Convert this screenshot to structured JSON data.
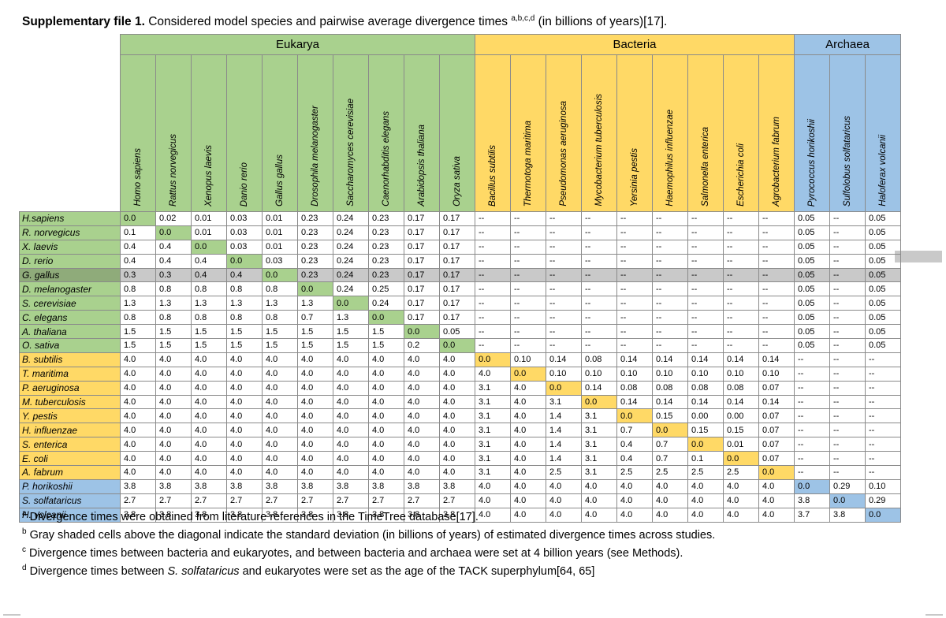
{
  "caption": {
    "bold": "Supplementary file 1.",
    "text": " Considered model species and pairwise average divergence times ",
    "sup": "a,b,c,d",
    "tail": " (in billions of years)[17]."
  },
  "groups": [
    {
      "label": "Eukarya",
      "span": 10,
      "cls": "g"
    },
    {
      "label": "Bacteria",
      "span": 9,
      "cls": "y"
    },
    {
      "label": "Archaea",
      "span": 3,
      "cls": "b"
    }
  ],
  "columns": [
    "Homo sapiens",
    "Rattus norvegicus",
    "Xenopus laevis",
    "Danio rerio",
    "Gallus gallus",
    "Drosophila melanogaster",
    "Saccharomyces cerevisiae",
    "Caenorhabditis elegans",
    "Arabidopsis thaliana",
    "Oryza sativa",
    "Bacillus subtilis",
    "Thermotoga maritima",
    "Pseudomonas aeruginosa",
    "Mycobacterium tuberculosis",
    "Yersinia pestis",
    "Haemophilus influenzae",
    "Salmonella enterica",
    "Escherichia coli",
    "Agrobacterium fabrum",
    "Pyrococcus horikoshii",
    "Sulfolobus solfataricus",
    "Haloferax volcanii"
  ],
  "column_groups": [
    "g",
    "g",
    "g",
    "g",
    "g",
    "g",
    "g",
    "g",
    "g",
    "g",
    "y",
    "y",
    "y",
    "y",
    "y",
    "y",
    "y",
    "y",
    "y",
    "b",
    "b",
    "b"
  ],
  "rows": [
    {
      "name": "H.sapiens",
      "cls": "g",
      "values": [
        "0.0",
        "0.02",
        "0.01",
        "0.03",
        "0.01",
        "0.23",
        "0.24",
        "0.23",
        "0.17",
        "0.17",
        "--",
        "--",
        "--",
        "--",
        "--",
        "--",
        "--",
        "--",
        "--",
        "0.05",
        "--",
        "0.05"
      ]
    },
    {
      "name": "R. norvegicus",
      "cls": "g",
      "values": [
        "0.1",
        "0.0",
        "0.01",
        "0.03",
        "0.01",
        "0.23",
        "0.24",
        "0.23",
        "0.17",
        "0.17",
        "--",
        "--",
        "--",
        "--",
        "--",
        "--",
        "--",
        "--",
        "--",
        "0.05",
        "--",
        "0.05"
      ]
    },
    {
      "name": "X. laevis",
      "cls": "g",
      "values": [
        "0.4",
        "0.4",
        "0.0",
        "0.03",
        "0.01",
        "0.23",
        "0.24",
        "0.23",
        "0.17",
        "0.17",
        "--",
        "--",
        "--",
        "--",
        "--",
        "--",
        "--",
        "--",
        "--",
        "0.05",
        "--",
        "0.05"
      ]
    },
    {
      "name": "D. rerio",
      "cls": "g",
      "values": [
        "0.4",
        "0.4",
        "0.4",
        "0.0",
        "0.03",
        "0.23",
        "0.24",
        "0.23",
        "0.17",
        "0.17",
        "--",
        "--",
        "--",
        "--",
        "--",
        "--",
        "--",
        "--",
        "--",
        "0.05",
        "--",
        "0.05"
      ]
    },
    {
      "name": "G. gallus",
      "cls": "g",
      "values": [
        "0.3",
        "0.3",
        "0.4",
        "0.4",
        "0.0",
        "0.23",
        "0.24",
        "0.23",
        "0.17",
        "0.17",
        "--",
        "--",
        "--",
        "--",
        "--",
        "--",
        "--",
        "--",
        "--",
        "0.05",
        "--",
        "0.05"
      ]
    },
    {
      "name": "D. melanogaster",
      "cls": "g",
      "values": [
        "0.8",
        "0.8",
        "0.8",
        "0.8",
        "0.8",
        "0.0",
        "0.24",
        "0.25",
        "0.17",
        "0.17",
        "--",
        "--",
        "--",
        "--",
        "--",
        "--",
        "--",
        "--",
        "--",
        "0.05",
        "--",
        "0.05"
      ]
    },
    {
      "name": "S. cerevisiae",
      "cls": "g",
      "values": [
        "1.3",
        "1.3",
        "1.3",
        "1.3",
        "1.3",
        "1.3",
        "0.0",
        "0.24",
        "0.17",
        "0.17",
        "--",
        "--",
        "--",
        "--",
        "--",
        "--",
        "--",
        "--",
        "--",
        "0.05",
        "--",
        "0.05"
      ]
    },
    {
      "name": "C. elegans",
      "cls": "g",
      "values": [
        "0.8",
        "0.8",
        "0.8",
        "0.8",
        "0.8",
        "0.7",
        "1.3",
        "0.0",
        "0.17",
        "0.17",
        "--",
        "--",
        "--",
        "--",
        "--",
        "--",
        "--",
        "--",
        "--",
        "0.05",
        "--",
        "0.05"
      ]
    },
    {
      "name": "A. thaliana",
      "cls": "g",
      "values": [
        "1.5",
        "1.5",
        "1.5",
        "1.5",
        "1.5",
        "1.5",
        "1.5",
        "1.5",
        "0.0",
        "0.05",
        "--",
        "--",
        "--",
        "--",
        "--",
        "--",
        "--",
        "--",
        "--",
        "0.05",
        "--",
        "0.05"
      ]
    },
    {
      "name": "O. sativa",
      "cls": "g",
      "values": [
        "1.5",
        "1.5",
        "1.5",
        "1.5",
        "1.5",
        "1.5",
        "1.5",
        "1.5",
        "0.2",
        "0.0",
        "--",
        "--",
        "--",
        "--",
        "--",
        "--",
        "--",
        "--",
        "--",
        "0.05",
        "--",
        "0.05"
      ]
    },
    {
      "name": "B. subtilis",
      "cls": "y",
      "values": [
        "4.0",
        "4.0",
        "4.0",
        "4.0",
        "4.0",
        "4.0",
        "4.0",
        "4.0",
        "4.0",
        "4.0",
        "0.0",
        "0.10",
        "0.14",
        "0.08",
        "0.14",
        "0.14",
        "0.14",
        "0.14",
        "0.14",
        "--",
        "--",
        "--"
      ]
    },
    {
      "name": "T. maritima",
      "cls": "y",
      "values": [
        "4.0",
        "4.0",
        "4.0",
        "4.0",
        "4.0",
        "4.0",
        "4.0",
        "4.0",
        "4.0",
        "4.0",
        "4.0",
        "0.0",
        "0.10",
        "0.10",
        "0.10",
        "0.10",
        "0.10",
        "0.10",
        "0.10",
        "--",
        "--",
        "--"
      ]
    },
    {
      "name": "P. aeruginosa",
      "cls": "y",
      "values": [
        "4.0",
        "4.0",
        "4.0",
        "4.0",
        "4.0",
        "4.0",
        "4.0",
        "4.0",
        "4.0",
        "4.0",
        "3.1",
        "4.0",
        "0.0",
        "0.14",
        "0.08",
        "0.08",
        "0.08",
        "0.08",
        "0.07",
        "--",
        "--",
        "--"
      ]
    },
    {
      "name": "M. tuberculosis",
      "cls": "y",
      "values": [
        "4.0",
        "4.0",
        "4.0",
        "4.0",
        "4.0",
        "4.0",
        "4.0",
        "4.0",
        "4.0",
        "4.0",
        "3.1",
        "4.0",
        "3.1",
        "0.0",
        "0.14",
        "0.14",
        "0.14",
        "0.14",
        "0.14",
        "--",
        "--",
        "--"
      ]
    },
    {
      "name": "Y. pestis",
      "cls": "y",
      "values": [
        "4.0",
        "4.0",
        "4.0",
        "4.0",
        "4.0",
        "4.0",
        "4.0",
        "4.0",
        "4.0",
        "4.0",
        "3.1",
        "4.0",
        "1.4",
        "3.1",
        "0.0",
        "0.15",
        "0.00",
        "0.00",
        "0.07",
        "--",
        "--",
        "--"
      ]
    },
    {
      "name": "H. influenzae",
      "cls": "y",
      "values": [
        "4.0",
        "4.0",
        "4.0",
        "4.0",
        "4.0",
        "4.0",
        "4.0",
        "4.0",
        "4.0",
        "4.0",
        "3.1",
        "4.0",
        "1.4",
        "3.1",
        "0.7",
        "0.0",
        "0.15",
        "0.15",
        "0.07",
        "--",
        "--",
        "--"
      ]
    },
    {
      "name": "S. enterica",
      "cls": "y",
      "values": [
        "4.0",
        "4.0",
        "4.0",
        "4.0",
        "4.0",
        "4.0",
        "4.0",
        "4.0",
        "4.0",
        "4.0",
        "3.1",
        "4.0",
        "1.4",
        "3.1",
        "0.4",
        "0.7",
        "0.0",
        "0.01",
        "0.07",
        "--",
        "--",
        "--"
      ]
    },
    {
      "name": "E. coli",
      "cls": "y",
      "values": [
        "4.0",
        "4.0",
        "4.0",
        "4.0",
        "4.0",
        "4.0",
        "4.0",
        "4.0",
        "4.0",
        "4.0",
        "3.1",
        "4.0",
        "1.4",
        "3.1",
        "0.4",
        "0.7",
        "0.1",
        "0.0",
        "0.07",
        "--",
        "--",
        "--"
      ]
    },
    {
      "name": "A. fabrum",
      "cls": "y",
      "values": [
        "4.0",
        "4.0",
        "4.0",
        "4.0",
        "4.0",
        "4.0",
        "4.0",
        "4.0",
        "4.0",
        "4.0",
        "3.1",
        "4.0",
        "2.5",
        "3.1",
        "2.5",
        "2.5",
        "2.5",
        "2.5",
        "0.0",
        "--",
        "--",
        "--"
      ]
    },
    {
      "name": "P. horikoshii",
      "cls": "b",
      "values": [
        "3.8",
        "3.8",
        "3.8",
        "3.8",
        "3.8",
        "3.8",
        "3.8",
        "3.8",
        "3.8",
        "3.8",
        "4.0",
        "4.0",
        "4.0",
        "4.0",
        "4.0",
        "4.0",
        "4.0",
        "4.0",
        "4.0",
        "0.0",
        "0.29",
        "0.10"
      ]
    },
    {
      "name": "S. solfataricus",
      "cls": "b",
      "values": [
        "2.7",
        "2.7",
        "2.7",
        "2.7",
        "2.7",
        "2.7",
        "2.7",
        "2.7",
        "2.7",
        "2.7",
        "4.0",
        "4.0",
        "4.0",
        "4.0",
        "4.0",
        "4.0",
        "4.0",
        "4.0",
        "4.0",
        "3.8",
        "0.0",
        "0.29"
      ]
    },
    {
      "name": "H. volcanii",
      "cls": "b",
      "values": [
        "3.8",
        "3.8",
        "3.8",
        "3.8",
        "3.8",
        "3.8",
        "3.8",
        "3.8",
        "3.8",
        "3.8",
        "4.0",
        "4.0",
        "4.0",
        "4.0",
        "4.0",
        "4.0",
        "4.0",
        "4.0",
        "4.0",
        "3.7",
        "3.8",
        "0.0"
      ]
    }
  ],
  "highlight_row": 4,
  "footnotes": [
    {
      "mark": "a",
      "text": " Divergence times were obtained from literature references in the TimeTree database[17]."
    },
    {
      "mark": "b",
      "text": " Gray shaded cells above the diagonal indicate the standard deviation (in billions of years) of estimated divergence times across studies."
    },
    {
      "mark": "c",
      "text": " Divergence times between bacteria and eukaryotes, and between bacteria and archaea were set at 4 billion years (see Methods)."
    },
    {
      "mark": "d",
      "pre": " Divergence times between ",
      "italic": "S. solfataricus",
      "post": " and eukaryotes were set as the age of the TACK superphylum[64, 65]"
    }
  ]
}
